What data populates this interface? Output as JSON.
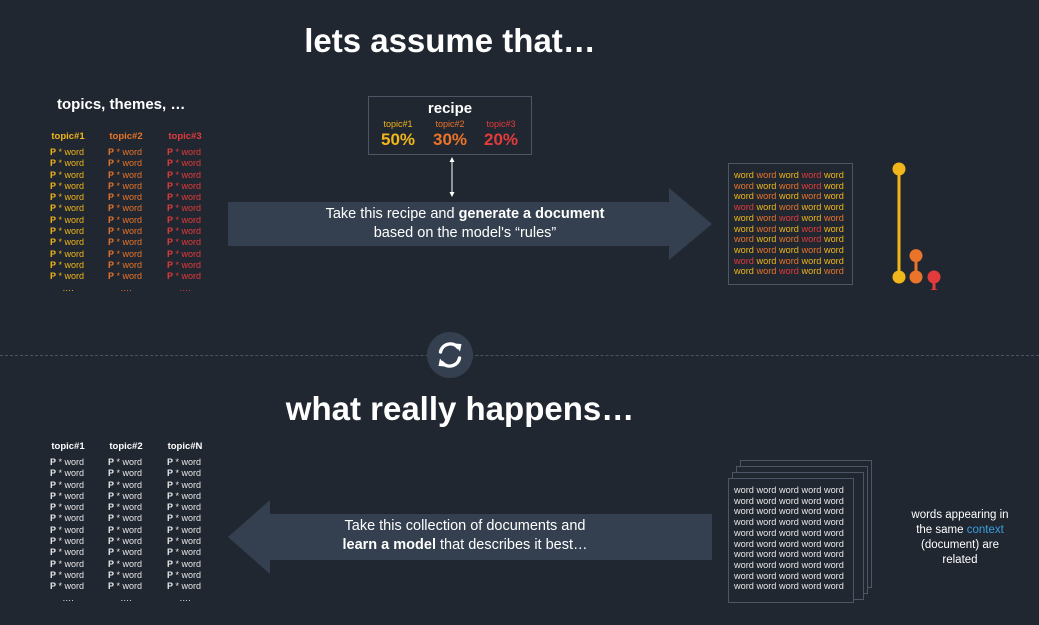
{
  "top": {
    "title": "lets assume that…",
    "topics_heading": "topics, themes, …",
    "columns": [
      {
        "header": "topic#1",
        "color": "#f1b619"
      },
      {
        "header": "topic#2",
        "color": "#e9742a"
      },
      {
        "header": "topic#3",
        "color": "#e23b3b"
      }
    ],
    "row_prefix": "P",
    "row_suffix": " * word",
    "dots": "….",
    "recipe": {
      "title": "recipe",
      "items": [
        {
          "label": "topic#1",
          "value": "50%",
          "color": "#f1b619",
          "share": 0.5
        },
        {
          "label": "topic#2",
          "value": "30%",
          "color": "#e9742a",
          "share": 0.3
        },
        {
          "label": "topic#3",
          "value": "20%",
          "color": "#e23b3b",
          "share": 0.2
        }
      ]
    },
    "arrow": {
      "line1_plain": "Take this recipe and ",
      "line1_bold": "generate a document",
      "line2": "based on the model's “rules”"
    },
    "word": "word"
  },
  "bottom": {
    "title": "what really happens…",
    "columns": [
      {
        "header": "topic#1"
      },
      {
        "header": "topic#2"
      },
      {
        "header": "topic#N"
      }
    ],
    "arrow": {
      "line1": "Take this collection of documents and",
      "line2_bold": "learn a model",
      "line2_plain": " that describes it best…"
    },
    "side_note": {
      "line1": "words appearing in",
      "line2_plain": "the same ",
      "line2_highlight": "context",
      "line3": "(document) are",
      "line4": "related"
    }
  },
  "colors": {
    "background": "#212730",
    "arrow": "#34404f",
    "topic1": "#f1b619",
    "topic2": "#e9742a",
    "topic3": "#e23b3b",
    "context": "#3a9fe0"
  },
  "icons": {
    "refresh": "refresh-icon"
  }
}
